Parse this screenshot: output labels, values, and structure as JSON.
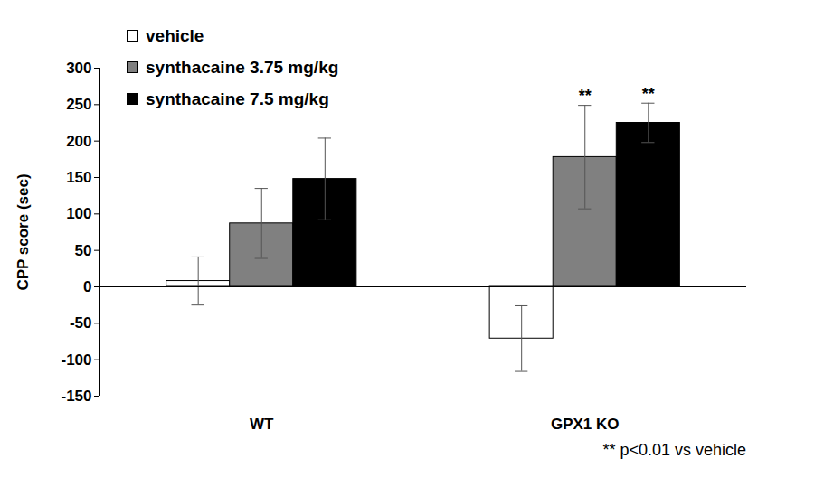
{
  "chart_data": {
    "type": "bar",
    "y_label": "CPP score (sec)",
    "categories": [
      "WT",
      "GPX1 KO"
    ],
    "series": [
      {
        "name": "vehicle",
        "color": "#ffffff",
        "values": [
          8,
          -71
        ],
        "errors": [
          33,
          45
        ]
      },
      {
        "name": "synthacaine 3.75 mg/kg",
        "color": "#808080",
        "values": [
          87,
          178
        ],
        "errors": [
          48,
          71
        ]
      },
      {
        "name": "synthacaine 7.5 mg/kg",
        "color": "#000000",
        "values": [
          148,
          225
        ],
        "errors": [
          56,
          27
        ]
      }
    ],
    "ylim": [
      -150,
      300
    ],
    "yticks": [
      -150,
      -100,
      -50,
      0,
      50,
      100,
      150,
      200,
      250,
      300
    ],
    "legend": "top-left",
    "annotations": [
      {
        "text": "**",
        "category": "GPX1 KO",
        "series": "synthacaine 3.75 mg/kg"
      },
      {
        "text": "**",
        "category": "GPX1 KO",
        "series": "synthacaine 7.5 mg/kg"
      }
    ],
    "footnote": "** p<0.01 vs vehicle"
  }
}
